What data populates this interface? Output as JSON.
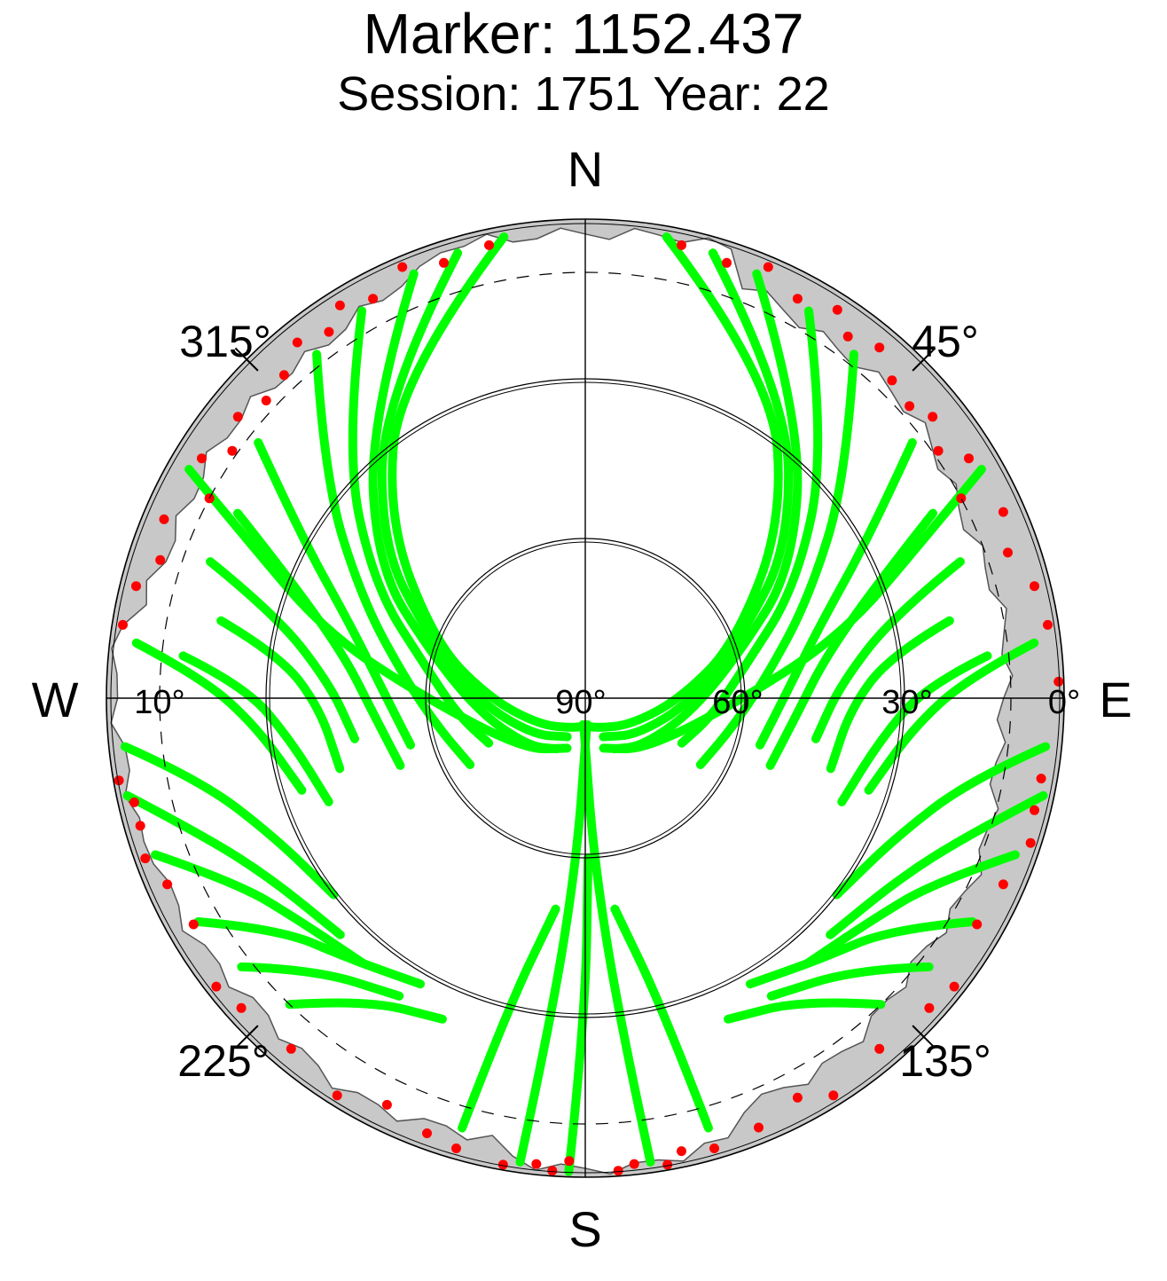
{
  "title": "Marker: 1152.437",
  "subtitle": "Session: 1751 Year: 22",
  "chart_data": {
    "type": "scatter",
    "projection": "polar skyplot (azimuth / elevation)",
    "direction_labels": {
      "north": "N",
      "east": "E",
      "south": "S",
      "west": "W"
    },
    "azimuth_tick_labels": [
      "45°",
      "135°",
      "225°",
      "315°"
    ],
    "elevation_tick_labels": [
      "0°",
      "30°",
      "60°",
      "90°",
      "10°"
    ],
    "elevation_circles": [
      0,
      10,
      30,
      60
    ],
    "cutoff_elevation_dashed": 10,
    "colors": {
      "track": "#00ff00",
      "edge_point": "#ff0000",
      "obstruction": "#c8c8c8",
      "outline": "#000000"
    },
    "series": [
      {
        "color": "#00ff00",
        "tracks": [
          [
            [
              2,
              350
            ],
            [
              20,
              330
            ],
            [
              40,
              312
            ],
            [
              60,
              290
            ],
            [
              72,
              270
            ],
            [
              80,
              240
            ],
            [
              84,
              200
            ],
            [
              85,
              175
            ]
          ],
          [
            [
              3,
              344
            ],
            [
              22,
              326
            ],
            [
              42,
              307
            ],
            [
              58,
              292
            ],
            [
              70,
              268
            ],
            [
              78,
              235
            ],
            [
              82,
              205
            ]
          ],
          [
            [
              4,
              338
            ],
            [
              24,
              322
            ],
            [
              44,
              302
            ],
            [
              60,
              286
            ],
            [
              70,
              262
            ],
            [
              76,
              230
            ],
            [
              79,
              210
            ]
          ],
          [
            [
              6,
              330
            ],
            [
              25,
              316
            ],
            [
              45,
              298
            ],
            [
              60,
              280
            ],
            [
              66,
              262
            ],
            [
              70,
              245
            ]
          ],
          [
            [
              8,
              322
            ],
            [
              26,
              310
            ],
            [
              44,
              294
            ],
            [
              56,
              276
            ],
            [
              62,
              258
            ],
            [
              65,
              240
            ]
          ],
          [
            [
              12,
              308
            ],
            [
              28,
              300
            ],
            [
              44,
              287
            ],
            [
              52,
              272
            ],
            [
              56,
              255
            ]
          ],
          [
            [
              16,
              298
            ],
            [
              30,
              292
            ],
            [
              44,
              280
            ],
            [
              50,
              266
            ],
            [
              53,
              250
            ]
          ],
          [
            [
              15,
              290
            ],
            [
              30,
              285
            ],
            [
              42,
              273
            ],
            [
              46,
              260
            ]
          ],
          [
            [
              20,
              282
            ],
            [
              32,
              278
            ],
            [
              40,
              268
            ],
            [
              42,
              254
            ]
          ],
          [
            [
              14,
              276
            ],
            [
              26,
              272
            ],
            [
              34,
              262
            ],
            [
              38,
              248
            ]
          ],
          [
            [
              5,
              277
            ],
            [
              18,
              273
            ],
            [
              28,
              265
            ],
            [
              34,
              252
            ]
          ],
          [
            [
              3,
              264
            ],
            [
              16,
              258
            ],
            [
              26,
              246
            ],
            [
              30,
              232
            ]
          ],
          [
            [
              2,
              258
            ],
            [
              14,
              250
            ],
            [
              22,
              240
            ],
            [
              26,
              226
            ]
          ],
          [
            [
              4,
              250
            ],
            [
              16,
              242
            ],
            [
              22,
              232
            ],
            [
              25,
              220
            ]
          ],
          [
            [
              6,
              240
            ],
            [
              18,
              233
            ],
            [
              24,
              222
            ],
            [
              28,
              210
            ]
          ],
          [
            [
              8,
              232
            ],
            [
              18,
              225
            ],
            [
              24,
              212
            ]
          ],
          [
            [
              10,
              224
            ],
            [
              20,
              216
            ],
            [
              24,
              204
            ]
          ],
          [
            [
              4,
              300
            ],
            [
              20,
              295
            ],
            [
              40,
              284
            ],
            [
              60,
              270
            ],
            [
              75,
              230
            ],
            [
              80,
              200
            ]
          ],
          [
            [
              2,
              10
            ],
            [
              20,
              30
            ],
            [
              40,
              48
            ],
            [
              60,
              70
            ],
            [
              72,
              90
            ],
            [
              80,
              120
            ],
            [
              84,
              160
            ],
            [
              85,
              185
            ]
          ],
          [
            [
              3,
              16
            ],
            [
              22,
              34
            ],
            [
              42,
              53
            ],
            [
              58,
              68
            ],
            [
              70,
              92
            ],
            [
              78,
              125
            ],
            [
              82,
              155
            ]
          ],
          [
            [
              4,
              22
            ],
            [
              24,
              38
            ],
            [
              44,
              58
            ],
            [
              60,
              74
            ],
            [
              70,
              98
            ],
            [
              76,
              130
            ],
            [
              79,
              150
            ]
          ],
          [
            [
              6,
              30
            ],
            [
              25,
              44
            ],
            [
              45,
              62
            ],
            [
              60,
              80
            ],
            [
              66,
              98
            ],
            [
              70,
              115
            ]
          ],
          [
            [
              8,
              38
            ],
            [
              26,
              50
            ],
            [
              44,
              66
            ],
            [
              56,
              84
            ],
            [
              62,
              102
            ],
            [
              65,
              120
            ]
          ],
          [
            [
              12,
              52
            ],
            [
              28,
              60
            ],
            [
              44,
              73
            ],
            [
              52,
              88
            ],
            [
              56,
              105
            ]
          ],
          [
            [
              16,
              62
            ],
            [
              30,
              68
            ],
            [
              44,
              80
            ],
            [
              50,
              94
            ],
            [
              53,
              110
            ]
          ],
          [
            [
              15,
              70
            ],
            [
              30,
              75
            ],
            [
              42,
              87
            ],
            [
              46,
              100
            ]
          ],
          [
            [
              20,
              78
            ],
            [
              32,
              82
            ],
            [
              40,
              92
            ],
            [
              42,
              106
            ]
          ],
          [
            [
              14,
              84
            ],
            [
              26,
              88
            ],
            [
              34,
              98
            ],
            [
              38,
              112
            ]
          ],
          [
            [
              5,
              83
            ],
            [
              18,
              87
            ],
            [
              28,
              95
            ],
            [
              34,
              108
            ]
          ],
          [
            [
              3,
              96
            ],
            [
              16,
              102
            ],
            [
              26,
              114
            ],
            [
              30,
              128
            ]
          ],
          [
            [
              2,
              102
            ],
            [
              14,
              110
            ],
            [
              22,
              120
            ],
            [
              26,
              134
            ]
          ],
          [
            [
              4,
              110
            ],
            [
              16,
              118
            ],
            [
              22,
              128
            ],
            [
              25,
              140
            ]
          ],
          [
            [
              6,
              120
            ],
            [
              18,
              127
            ],
            [
              24,
              138
            ],
            [
              28,
              150
            ]
          ],
          [
            [
              8,
              128
            ],
            [
              18,
              135
            ],
            [
              24,
              148
            ]
          ],
          [
            [
              10,
              136
            ],
            [
              20,
              144
            ],
            [
              24,
              156
            ]
          ],
          [
            [
              4,
              60
            ],
            [
              20,
              65
            ],
            [
              40,
              76
            ],
            [
              60,
              90
            ],
            [
              75,
              130
            ],
            [
              80,
              160
            ]
          ],
          [
            [
              2,
              188
            ],
            [
              30,
              186
            ],
            [
              60,
              183
            ],
            [
              84,
              178
            ]
          ],
          [
            [
              2,
              172
            ],
            [
              30,
              174
            ],
            [
              60,
              177
            ],
            [
              84,
              182
            ]
          ],
          [
            [
              1,
              182
            ],
            [
              30,
              180
            ],
            [
              60,
              179
            ]
          ],
          [
            [
              6,
              196
            ],
            [
              30,
              194
            ],
            [
              50,
              188
            ]
          ],
          [
            [
              6,
              164
            ],
            [
              30,
              166
            ],
            [
              50,
              172
            ]
          ]
        ]
      },
      {
        "color": "#ff0000",
        "points": [
          [
            3,
            348
          ],
          [
            4,
            342
          ],
          [
            2,
            337
          ],
          [
            5,
            332
          ],
          [
            3,
            328
          ],
          [
            6,
            325
          ],
          [
            4,
            321
          ],
          [
            7,
            317
          ],
          [
            8,
            313
          ],
          [
            6,
            309
          ],
          [
            9,
            305
          ],
          [
            5,
            302
          ],
          [
            10,
            298
          ],
          [
            4,
            293
          ],
          [
            6,
            288
          ],
          [
            3,
            284
          ],
          [
            2,
            279
          ],
          [
            1,
            260
          ],
          [
            3,
            257
          ],
          [
            3,
            254
          ],
          [
            2,
            250
          ],
          [
            4,
            246
          ],
          [
            5,
            240
          ],
          [
            2,
            232
          ],
          [
            3,
            228
          ],
          [
            4,
            220
          ],
          [
            2,
            212
          ],
          [
            5,
            206
          ],
          [
            3,
            200
          ],
          [
            2,
            196
          ],
          [
            1,
            190
          ],
          [
            2,
            186
          ],
          [
            3,
            182
          ],
          [
            1,
            176
          ],
          [
            3,
            12
          ],
          [
            4,
            18
          ],
          [
            2,
            23
          ],
          [
            5,
            28
          ],
          [
            3,
            33
          ],
          [
            6,
            36
          ],
          [
            4,
            40
          ],
          [
            7,
            44
          ],
          [
            8,
            48
          ],
          [
            6,
            51
          ],
          [
            9,
            55
          ],
          [
            5,
            58
          ],
          [
            10,
            62
          ],
          [
            4,
            66
          ],
          [
            6,
            71
          ],
          [
            3,
            76
          ],
          [
            2,
            81
          ],
          [
            1,
            88
          ],
          [
            3,
            100
          ],
          [
            3,
            104
          ],
          [
            2,
            108
          ],
          [
            4,
            114
          ],
          [
            5,
            120
          ],
          [
            2,
            128
          ],
          [
            3,
            132
          ],
          [
            4,
            140
          ],
          [
            2,
            148
          ],
          [
            5,
            152
          ],
          [
            3,
            158
          ],
          [
            2,
            164
          ],
          [
            1,
            170
          ],
          [
            2,
            174
          ],
          [
            3,
            168
          ],
          [
            1,
            184
          ]
        ]
      }
    ]
  }
}
